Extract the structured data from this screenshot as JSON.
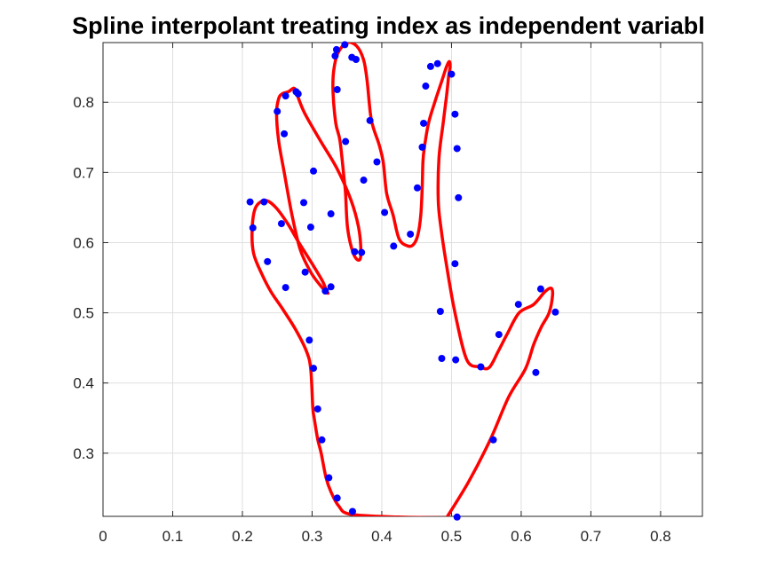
{
  "chart_data": {
    "type": "line",
    "title": "Spline interpolant treating index as independent variabl",
    "xlabel": "",
    "ylabel": "",
    "xlim": [
      0,
      0.86
    ],
    "ylim": [
      0.21,
      0.885
    ],
    "grid": true,
    "x_ticks": [
      "0",
      "0.1",
      "0.2",
      "0.3",
      "0.4",
      "0.5",
      "0.6",
      "0.7",
      "0.8"
    ],
    "y_ticks": [
      "0.3",
      "0.4",
      "0.5",
      "0.6",
      "0.7",
      "0.8"
    ],
    "series": [
      {
        "style": "spline-line",
        "color": "#ff0000",
        "x": [
          0.493,
          0.424,
          0.355,
          0.338,
          0.327,
          0.32,
          0.313,
          0.308,
          0.303,
          0.301,
          0.298,
          0.292,
          0.277,
          0.258,
          0.241,
          0.228,
          0.216,
          0.214,
          0.219,
          0.233,
          0.248,
          0.265,
          0.281,
          0.3,
          0.315,
          0.321,
          0.323,
          0.32,
          0.311,
          0.298,
          0.283,
          0.271,
          0.26,
          0.252,
          0.249,
          0.252,
          0.257,
          0.266,
          0.274,
          0.278,
          0.289,
          0.312,
          0.336,
          0.356,
          0.367,
          0.37,
          0.367,
          0.359,
          0.351,
          0.348,
          0.346,
          0.34,
          0.334,
          0.33,
          0.331,
          0.337,
          0.35,
          0.364,
          0.374,
          0.379,
          0.385,
          0.396,
          0.402,
          0.407,
          0.416,
          0.425,
          0.438,
          0.446,
          0.452,
          0.456,
          0.458,
          0.459,
          0.461,
          0.467,
          0.476,
          0.486,
          0.493,
          0.497,
          0.498,
          0.496,
          0.493,
          0.488,
          0.482,
          0.481,
          0.485,
          0.493,
          0.505,
          0.522,
          0.541,
          0.554,
          0.567,
          0.58,
          0.597,
          0.618,
          0.634,
          0.643,
          0.645,
          0.64,
          0.629,
          0.618,
          0.606,
          0.582,
          0.556,
          0.525,
          0.493
        ],
        "y": [
          0.208,
          0.209,
          0.213,
          0.225,
          0.245,
          0.265,
          0.3,
          0.32,
          0.35,
          0.365,
          0.42,
          0.445,
          0.475,
          0.505,
          0.53,
          0.555,
          0.585,
          0.62,
          0.65,
          0.66,
          0.65,
          0.627,
          0.6,
          0.57,
          0.545,
          0.53,
          0.528,
          0.53,
          0.54,
          0.558,
          0.59,
          0.64,
          0.7,
          0.745,
          0.785,
          0.805,
          0.812,
          0.815,
          0.82,
          0.812,
          0.785,
          0.745,
          0.705,
          0.66,
          0.62,
          0.585,
          0.575,
          0.585,
          0.62,
          0.67,
          0.69,
          0.745,
          0.77,
          0.815,
          0.845,
          0.87,
          0.885,
          0.88,
          0.86,
          0.83,
          0.775,
          0.74,
          0.715,
          0.67,
          0.64,
          0.605,
          0.595,
          0.598,
          0.612,
          0.64,
          0.68,
          0.715,
          0.735,
          0.77,
          0.8,
          0.83,
          0.851,
          0.858,
          0.85,
          0.838,
          0.81,
          0.77,
          0.72,
          0.66,
          0.62,
          0.567,
          0.5,
          0.433,
          0.423,
          0.422,
          0.445,
          0.47,
          0.5,
          0.512,
          0.53,
          0.535,
          0.525,
          0.5,
          0.48,
          0.455,
          0.42,
          0.38,
          0.32,
          0.26,
          0.208
        ]
      },
      {
        "style": "markers",
        "color": "#0000ff",
        "x": [
          0.508,
          0.358,
          0.336,
          0.324,
          0.314,
          0.308,
          0.302,
          0.296,
          0.262,
          0.236,
          0.215,
          0.211,
          0.231,
          0.256,
          0.29,
          0.319,
          0.327,
          0.298,
          0.288,
          0.25,
          0.26,
          0.262,
          0.277,
          0.28,
          0.302,
          0.327,
          0.361,
          0.371,
          0.374,
          0.348,
          0.336,
          0.333,
          0.335,
          0.347,
          0.357,
          0.363,
          0.383,
          0.393,
          0.404,
          0.417,
          0.441,
          0.451,
          0.458,
          0.46,
          0.463,
          0.47,
          0.48,
          0.5,
          0.505,
          0.508,
          0.51,
          0.505,
          0.484,
          0.486,
          0.506,
          0.542,
          0.568,
          0.596,
          0.628,
          0.649,
          0.621,
          0.56
        ],
        "y": [
          0.209,
          0.217,
          0.236,
          0.265,
          0.319,
          0.363,
          0.421,
          0.461,
          0.536,
          0.573,
          0.621,
          0.658,
          0.658,
          0.627,
          0.558,
          0.531,
          0.537,
          0.622,
          0.657,
          0.787,
          0.755,
          0.809,
          0.815,
          0.812,
          0.702,
          0.641,
          0.587,
          0.586,
          0.689,
          0.744,
          0.818,
          0.866,
          0.875,
          0.882,
          0.864,
          0.861,
          0.774,
          0.715,
          0.643,
          0.595,
          0.612,
          0.678,
          0.736,
          0.77,
          0.823,
          0.851,
          0.855,
          0.84,
          0.783,
          0.734,
          0.664,
          0.57,
          0.502,
          0.435,
          0.433,
          0.423,
          0.469,
          0.512,
          0.534,
          0.501,
          0.415,
          0.319
        ]
      }
    ]
  }
}
